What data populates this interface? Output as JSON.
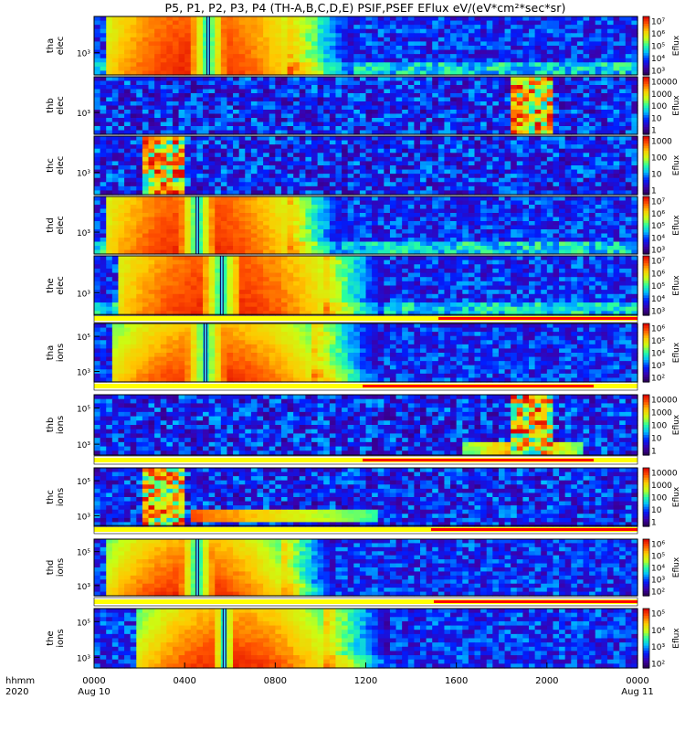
{
  "title": "P5, P1, P2, P3, P4 (TH-A,B,C,D,E) PSIF,PSEF EFlux eV/(eV*cm²*sec*sr)",
  "chart_data": {
    "type": "heatmap",
    "x_label_rows": [
      "hhmm",
      "2020"
    ],
    "x_ticks": [
      {
        "hhmm": "0000",
        "date": "Aug 10"
      },
      {
        "hhmm": "0400",
        "date": ""
      },
      {
        "hhmm": "0800",
        "date": ""
      },
      {
        "hhmm": "1200",
        "date": ""
      },
      {
        "hhmm": "1600",
        "date": ""
      },
      {
        "hhmm": "2000",
        "date": ""
      },
      {
        "hhmm": "0000",
        "date": "Aug 11"
      }
    ],
    "colorbar_label": "Eflux",
    "panels": [
      {
        "probe": "tha",
        "species": "elec",
        "y_ticks": [
          "10³"
        ],
        "colorbar_ticks": [
          "10⁷",
          "10⁶",
          "10⁵",
          "10⁴",
          "10³"
        ],
        "flag_bar": false
      },
      {
        "probe": "thb",
        "species": "elec",
        "y_ticks": [
          "10³"
        ],
        "colorbar_ticks": [
          "10000",
          "1000",
          "100",
          "10",
          "1"
        ],
        "flag_bar": false
      },
      {
        "probe": "thc",
        "species": "elec",
        "y_ticks": [
          "10³"
        ],
        "colorbar_ticks": [
          "1000",
          "100",
          "10",
          "1"
        ],
        "flag_bar": false
      },
      {
        "probe": "thd",
        "species": "elec",
        "y_ticks": [
          "10³"
        ],
        "colorbar_ticks": [
          "10⁷",
          "10⁶",
          "10⁵",
          "10⁴",
          "10³"
        ],
        "flag_bar": false
      },
      {
        "probe": "the",
        "species": "elec",
        "y_ticks": [
          "10³"
        ],
        "colorbar_ticks": [
          "10⁷",
          "10⁶",
          "10⁵",
          "10⁴",
          "10³"
        ],
        "flag_bar": true
      },
      {
        "probe": "tha",
        "species": "ions",
        "y_ticks": [
          "10⁵",
          "10³"
        ],
        "colorbar_ticks": [
          "10⁶",
          "10⁵",
          "10⁴",
          "10³",
          "10²"
        ],
        "flag_bar": true
      },
      {
        "probe": "thb",
        "species": "ions",
        "y_ticks": [
          "10⁵",
          "10³"
        ],
        "colorbar_ticks": [
          "10000",
          "1000",
          "100",
          "10",
          "1"
        ],
        "flag_bar": true
      },
      {
        "probe": "thc",
        "species": "ions",
        "y_ticks": [
          "10⁵",
          "10³"
        ],
        "colorbar_ticks": [
          "10000",
          "1000",
          "100",
          "10",
          "1"
        ],
        "flag_bar": true
      },
      {
        "probe": "thd",
        "species": "ions",
        "y_ticks": [
          "10⁵",
          "10³"
        ],
        "colorbar_ticks": [
          "10⁶",
          "10⁵",
          "10⁴",
          "10³",
          "10²"
        ],
        "flag_bar": true
      },
      {
        "probe": "the",
        "species": "ions",
        "y_ticks": [
          "10⁵",
          "10³"
        ],
        "colorbar_ticks": [
          "10⁵",
          "10⁴",
          "10³",
          "10²"
        ],
        "flag_bar": false
      }
    ]
  }
}
